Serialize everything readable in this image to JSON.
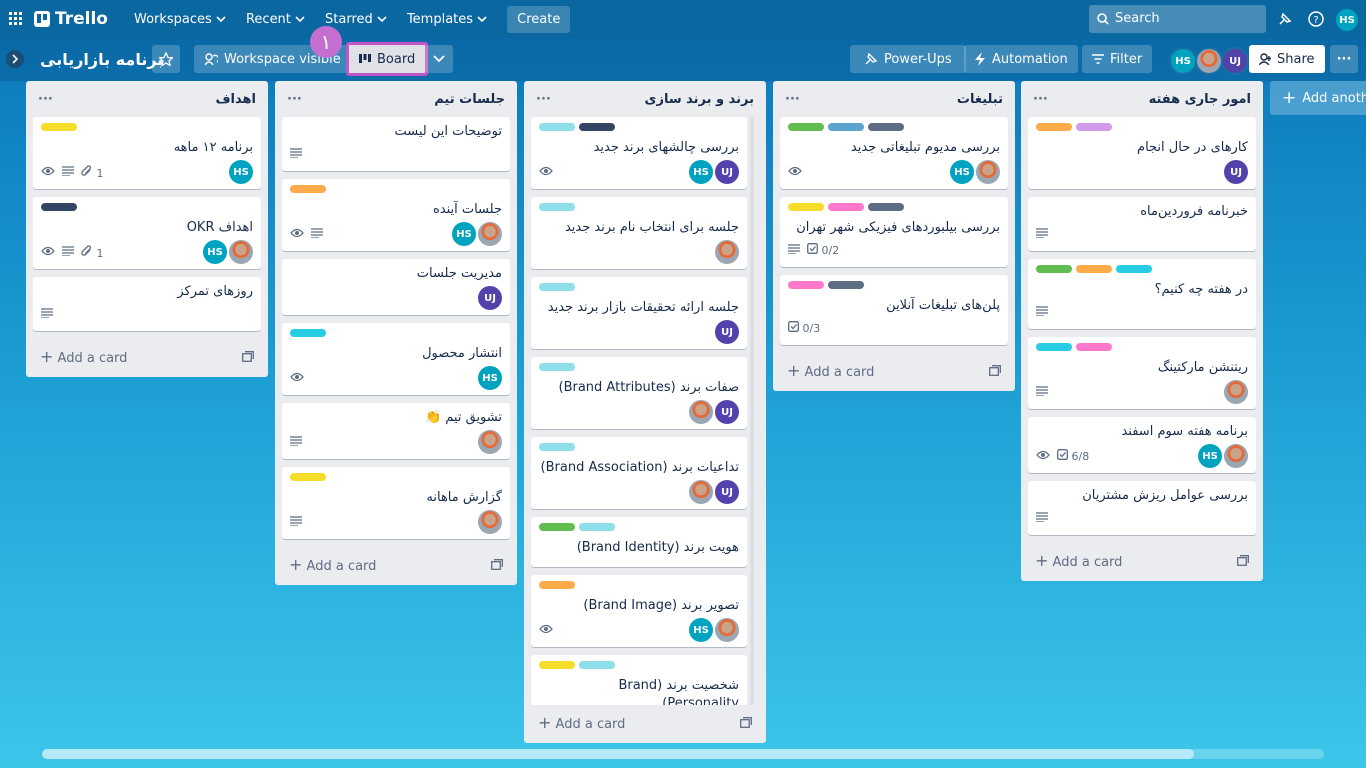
{
  "topbar": {
    "logo": "Trello",
    "menus": [
      "Workspaces",
      "Recent",
      "Starred",
      "Templates"
    ],
    "create": "Create",
    "search": "Search",
    "avatar": "HS"
  },
  "boardbar": {
    "title": "برنامه بازاریابی",
    "visibility": "Workspace visible",
    "view": "Board",
    "annotation": "۱",
    "powerups": "Power-Ups",
    "automation": "Automation",
    "filter": "Filter",
    "members": [
      "HS",
      null,
      "UJ"
    ],
    "share": "Share"
  },
  "add_card": "Add a card",
  "add_list": "Add another list",
  "lists": [
    {
      "title": "اهداف",
      "cards": [
        {
          "labels": [
            "#f5dd29"
          ],
          "title": "برنامه ۱۲ ماهه",
          "watch": true,
          "description": true,
          "attachments": "1",
          "members": [
            "HS"
          ]
        },
        {
          "labels": [
            "#344563"
          ],
          "title": "اهداف OKR",
          "watch": true,
          "description": true,
          "attachments": "1",
          "members": [
            "HS",
            null
          ]
        },
        {
          "labels": [],
          "title": "روزهای تمرکز",
          "description": true,
          "members": []
        }
      ]
    },
    {
      "title": "جلسات تیم",
      "cards": [
        {
          "labels": [],
          "title": "توضیحات این لیست",
          "description": true,
          "members": []
        },
        {
          "labels": [
            "#ffab4a"
          ],
          "title": "جلسات آینده",
          "watch": true,
          "description": true,
          "members": [
            "HS",
            null
          ]
        },
        {
          "labels": [],
          "title": "مدیریت جلسات",
          "members": [
            "UJ"
          ]
        },
        {
          "labels": [
            "#29cce5"
          ],
          "title": "انتشار محصول",
          "watch": true,
          "members": [
            "HS"
          ]
        },
        {
          "labels": [],
          "title": "تشویق تیم 👏",
          "description": true,
          "members": [
            null
          ]
        },
        {
          "labels": [
            "#f5dd29"
          ],
          "title": "گزارش ماهانه",
          "description": true,
          "members": [
            null
          ]
        }
      ]
    },
    {
      "title": "برند و برند سازی",
      "cards": [
        {
          "labels": [
            "#8fdfeb",
            "#344563"
          ],
          "title": "بررسی چالشهای برند جدید",
          "watch": true,
          "members": [
            "HS",
            "UJ"
          ]
        },
        {
          "labels": [
            "#8fdfeb"
          ],
          "title": "جلسه برای انتخاب نام برند جدید",
          "members": [
            null
          ]
        },
        {
          "labels": [
            "#8fdfeb"
          ],
          "title": "جلسه ارائه تحقیقات بازار برند جدید",
          "members": [
            "UJ"
          ]
        },
        {
          "labels": [
            "#8fdfeb"
          ],
          "title": "صفات برند (Brand Attributes)",
          "members": [
            null,
            "UJ"
          ]
        },
        {
          "labels": [
            "#8fdfeb"
          ],
          "title": "تداعیات برند (Brand Association)",
          "members": [
            null,
            "UJ"
          ]
        },
        {
          "labels": [
            "#61bd4f",
            "#8fdfeb"
          ],
          "title": "هویت برند (Brand Identity)",
          "members": []
        },
        {
          "labels": [
            "#ffab4a"
          ],
          "title": "تصویر برند (Brand Image)",
          "watch": true,
          "members": [
            "HS",
            null
          ]
        },
        {
          "labels": [
            "#f5dd29",
            "#8fdfeb"
          ],
          "title": "شخصیت برند (Brand Personality)",
          "members": [
            null
          ]
        }
      ]
    },
    {
      "title": "تبلیغات",
      "cards": [
        {
          "labels": [
            "#61bd4f",
            "#5ba4cf",
            "#5e6c84"
          ],
          "title": "بررسی مدیوم تبلیغاتی جدید",
          "watch": true,
          "members": [
            "HS",
            null
          ]
        },
        {
          "labels": [
            "#f5dd29",
            "#ff78cb",
            "#5e6c84"
          ],
          "title": "بررسی بیلبوردهای فیزیکی شهر تهران",
          "description": true,
          "checklist": "0/2",
          "members": []
        },
        {
          "labels": [
            "#ff78cb",
            "#5e6c84"
          ],
          "title": "پلن‌های تبلیغات آنلاین",
          "checklist": "0/3",
          "members": []
        }
      ]
    },
    {
      "title": "امور جاری هفته",
      "cards": [
        {
          "labels": [
            "#ffab4a",
            "#d29bea"
          ],
          "title": "کارهای در حال انجام",
          "members": [
            "UJ"
          ]
        },
        {
          "labels": [],
          "title": "خبرنامه فروردین‌ماه",
          "description": true,
          "members": []
        },
        {
          "labels": [
            "#61bd4f",
            "#ffab4a",
            "#29cce5"
          ],
          "title": "در هفته چه کنیم؟",
          "description": true,
          "members": []
        },
        {
          "labels": [
            "#29cce5",
            "#ff78cb"
          ],
          "title": "ریتنشن مارکتینگ",
          "description": true,
          "members": [
            null
          ]
        },
        {
          "labels": [],
          "title": "برنامه هفته سوم اسفند",
          "watch": true,
          "checklist": "6/8",
          "members": [
            "HS",
            null
          ]
        },
        {
          "labels": [],
          "title": "بررسی عوامل ریزش مشتریان",
          "description": true,
          "members": []
        }
      ]
    }
  ]
}
